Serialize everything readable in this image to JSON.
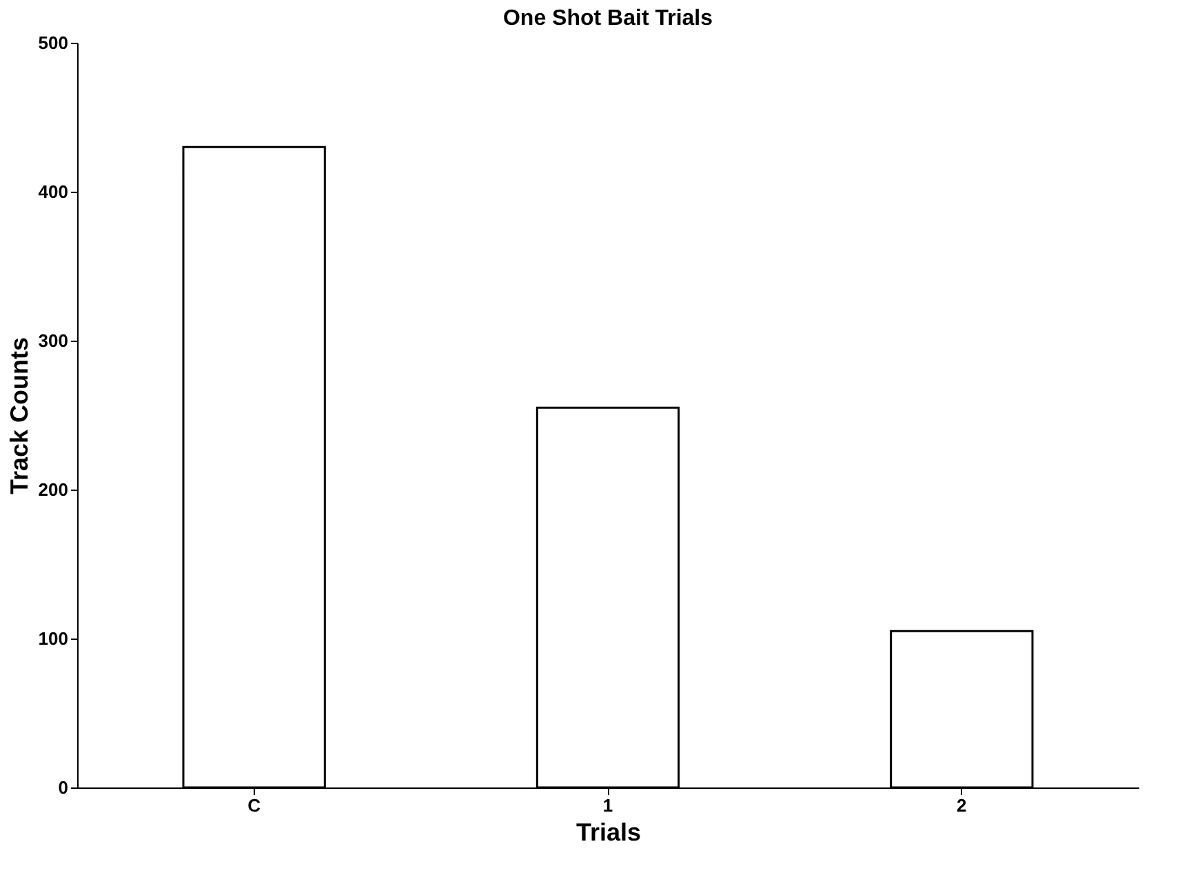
{
  "chart_data": {
    "type": "bar",
    "title": "One Shot Bait Trials",
    "xlabel": "Trials",
    "ylabel": "Track Counts",
    "categories": [
      "C",
      "1",
      "2"
    ],
    "values": [
      430,
      255,
      105
    ],
    "colors": [
      "#ffffff",
      "#ffffff",
      "#ffffff"
    ],
    "ylim": [
      0,
      500
    ],
    "yticks": [
      0,
      100,
      200,
      300,
      400,
      500
    ],
    "grid": false
  }
}
